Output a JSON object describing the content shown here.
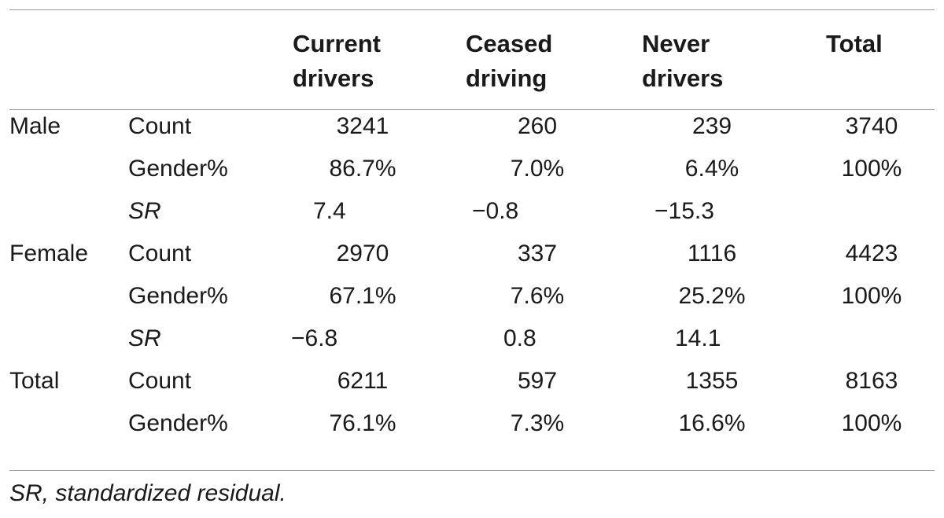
{
  "table": {
    "headers": {
      "group": "",
      "stat": "",
      "current": [
        "Current",
        "drivers"
      ],
      "ceased": [
        "Ceased",
        "driving"
      ],
      "never": [
        "Never",
        "drivers"
      ],
      "total": "Total"
    },
    "rows": [
      {
        "group": "Male",
        "stat": "Count",
        "current": "3241",
        "ceased": "260",
        "never": "239",
        "total": "3740"
      },
      {
        "group": "",
        "stat": "Gender%",
        "current": "86.7%",
        "ceased": "7.0%",
        "never": "6.4%",
        "total": "100%"
      },
      {
        "group": "",
        "stat": "SR",
        "current": "7.4",
        "ceased": "−0.8",
        "never": "−15.3",
        "total": ""
      },
      {
        "group": "Female",
        "stat": "Count",
        "current": "2970",
        "ceased": "337",
        "never": "1116",
        "total": "4423"
      },
      {
        "group": "",
        "stat": "Gender%",
        "current": "67.1%",
        "ceased": "7.6%",
        "never": "25.2%",
        "total": "100%"
      },
      {
        "group": "",
        "stat": "SR",
        "current": "−6.8",
        "ceased": "0.8",
        "never": "14.1",
        "total": ""
      },
      {
        "group": "Total",
        "stat": "Count",
        "current": "6211",
        "ceased": "597",
        "never": "1355",
        "total": "8163"
      },
      {
        "group": "",
        "stat": "Gender%",
        "current": "76.1%",
        "ceased": "7.3%",
        "never": "16.6%",
        "total": "100%"
      }
    ]
  },
  "footnote": "SR, standardized residual."
}
